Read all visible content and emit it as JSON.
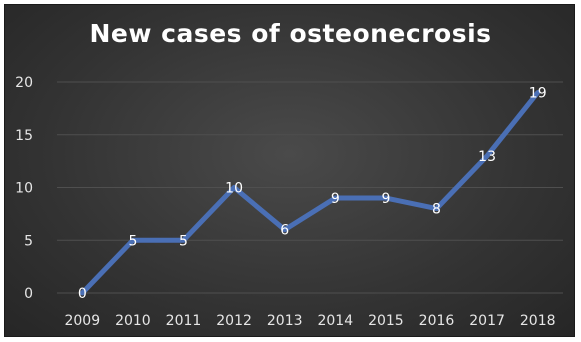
{
  "chart_data": {
    "type": "line",
    "title": "New cases of osteonecrosis",
    "xlabel": "",
    "ylabel": "",
    "categories": [
      "2009",
      "2010",
      "2011",
      "2012",
      "2013",
      "2014",
      "2015",
      "2016",
      "2017",
      "2018"
    ],
    "values": [
      0,
      5,
      5,
      10,
      6,
      9,
      9,
      8,
      13,
      19
    ],
    "ylim": [
      0,
      20
    ],
    "yticks": [
      "0",
      "5",
      "10",
      "15",
      "20"
    ],
    "grid": true,
    "legend": "none",
    "colors": {
      "line": "#4a6fb5",
      "background": "#333333",
      "text": "#ffffff",
      "grid": "#4f4f4f"
    }
  }
}
